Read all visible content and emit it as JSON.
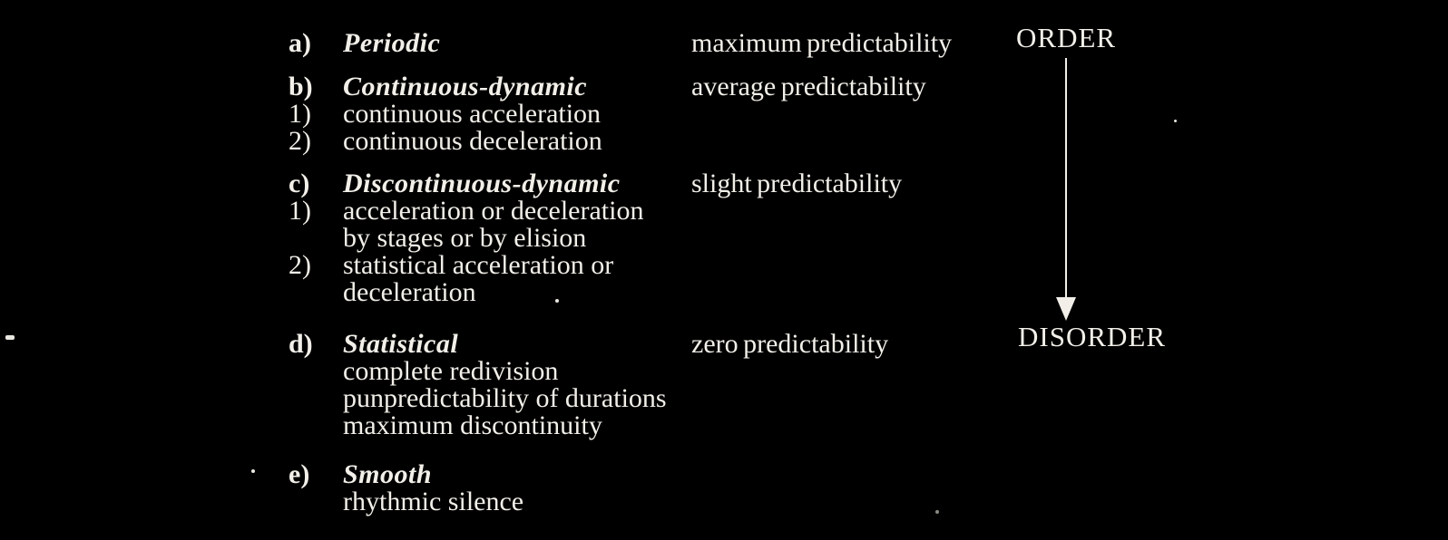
{
  "palette": {
    "background": "#000000",
    "text": "#f2efe9"
  },
  "content": {
    "groups": [
      {
        "label": "a)",
        "name": "Periodic",
        "predictability": "maximum predictability",
        "items": []
      },
      {
        "label": "b)",
        "name": "Continuous-dynamic",
        "predictability": "average predictability",
        "items": [
          {
            "num": "1)",
            "text": "continuous acceleration"
          },
          {
            "num": "2)",
            "text": "continuous deceleration"
          }
        ]
      },
      {
        "label": "c)",
        "name": "Discontinuous-dynamic",
        "predictability": "slight predictability",
        "items": [
          {
            "num": "1)",
            "text": "acceleration or deceleration"
          },
          {
            "num": "",
            "text": "by stages or by elision"
          },
          {
            "num": "2)",
            "text": "statistical acceleration or"
          },
          {
            "num": "",
            "text": "deceleration"
          }
        ]
      },
      {
        "label": "d)",
        "name": "Statistical",
        "predictability": "zero predictability",
        "items": [
          {
            "num": "",
            "text": "complete redivision"
          },
          {
            "num": "",
            "text": "punpredictability of durations"
          },
          {
            "num": "",
            "text": "maximum discontinuity"
          }
        ]
      },
      {
        "label": "e)",
        "name": "Smooth",
        "predictability": "",
        "items": [
          {
            "num": "",
            "text": "rhythmic silence"
          }
        ]
      }
    ]
  },
  "spectrum": {
    "top": "ORDER",
    "bottom": "DISORDER",
    "arrow_icon": "down-arrow"
  }
}
